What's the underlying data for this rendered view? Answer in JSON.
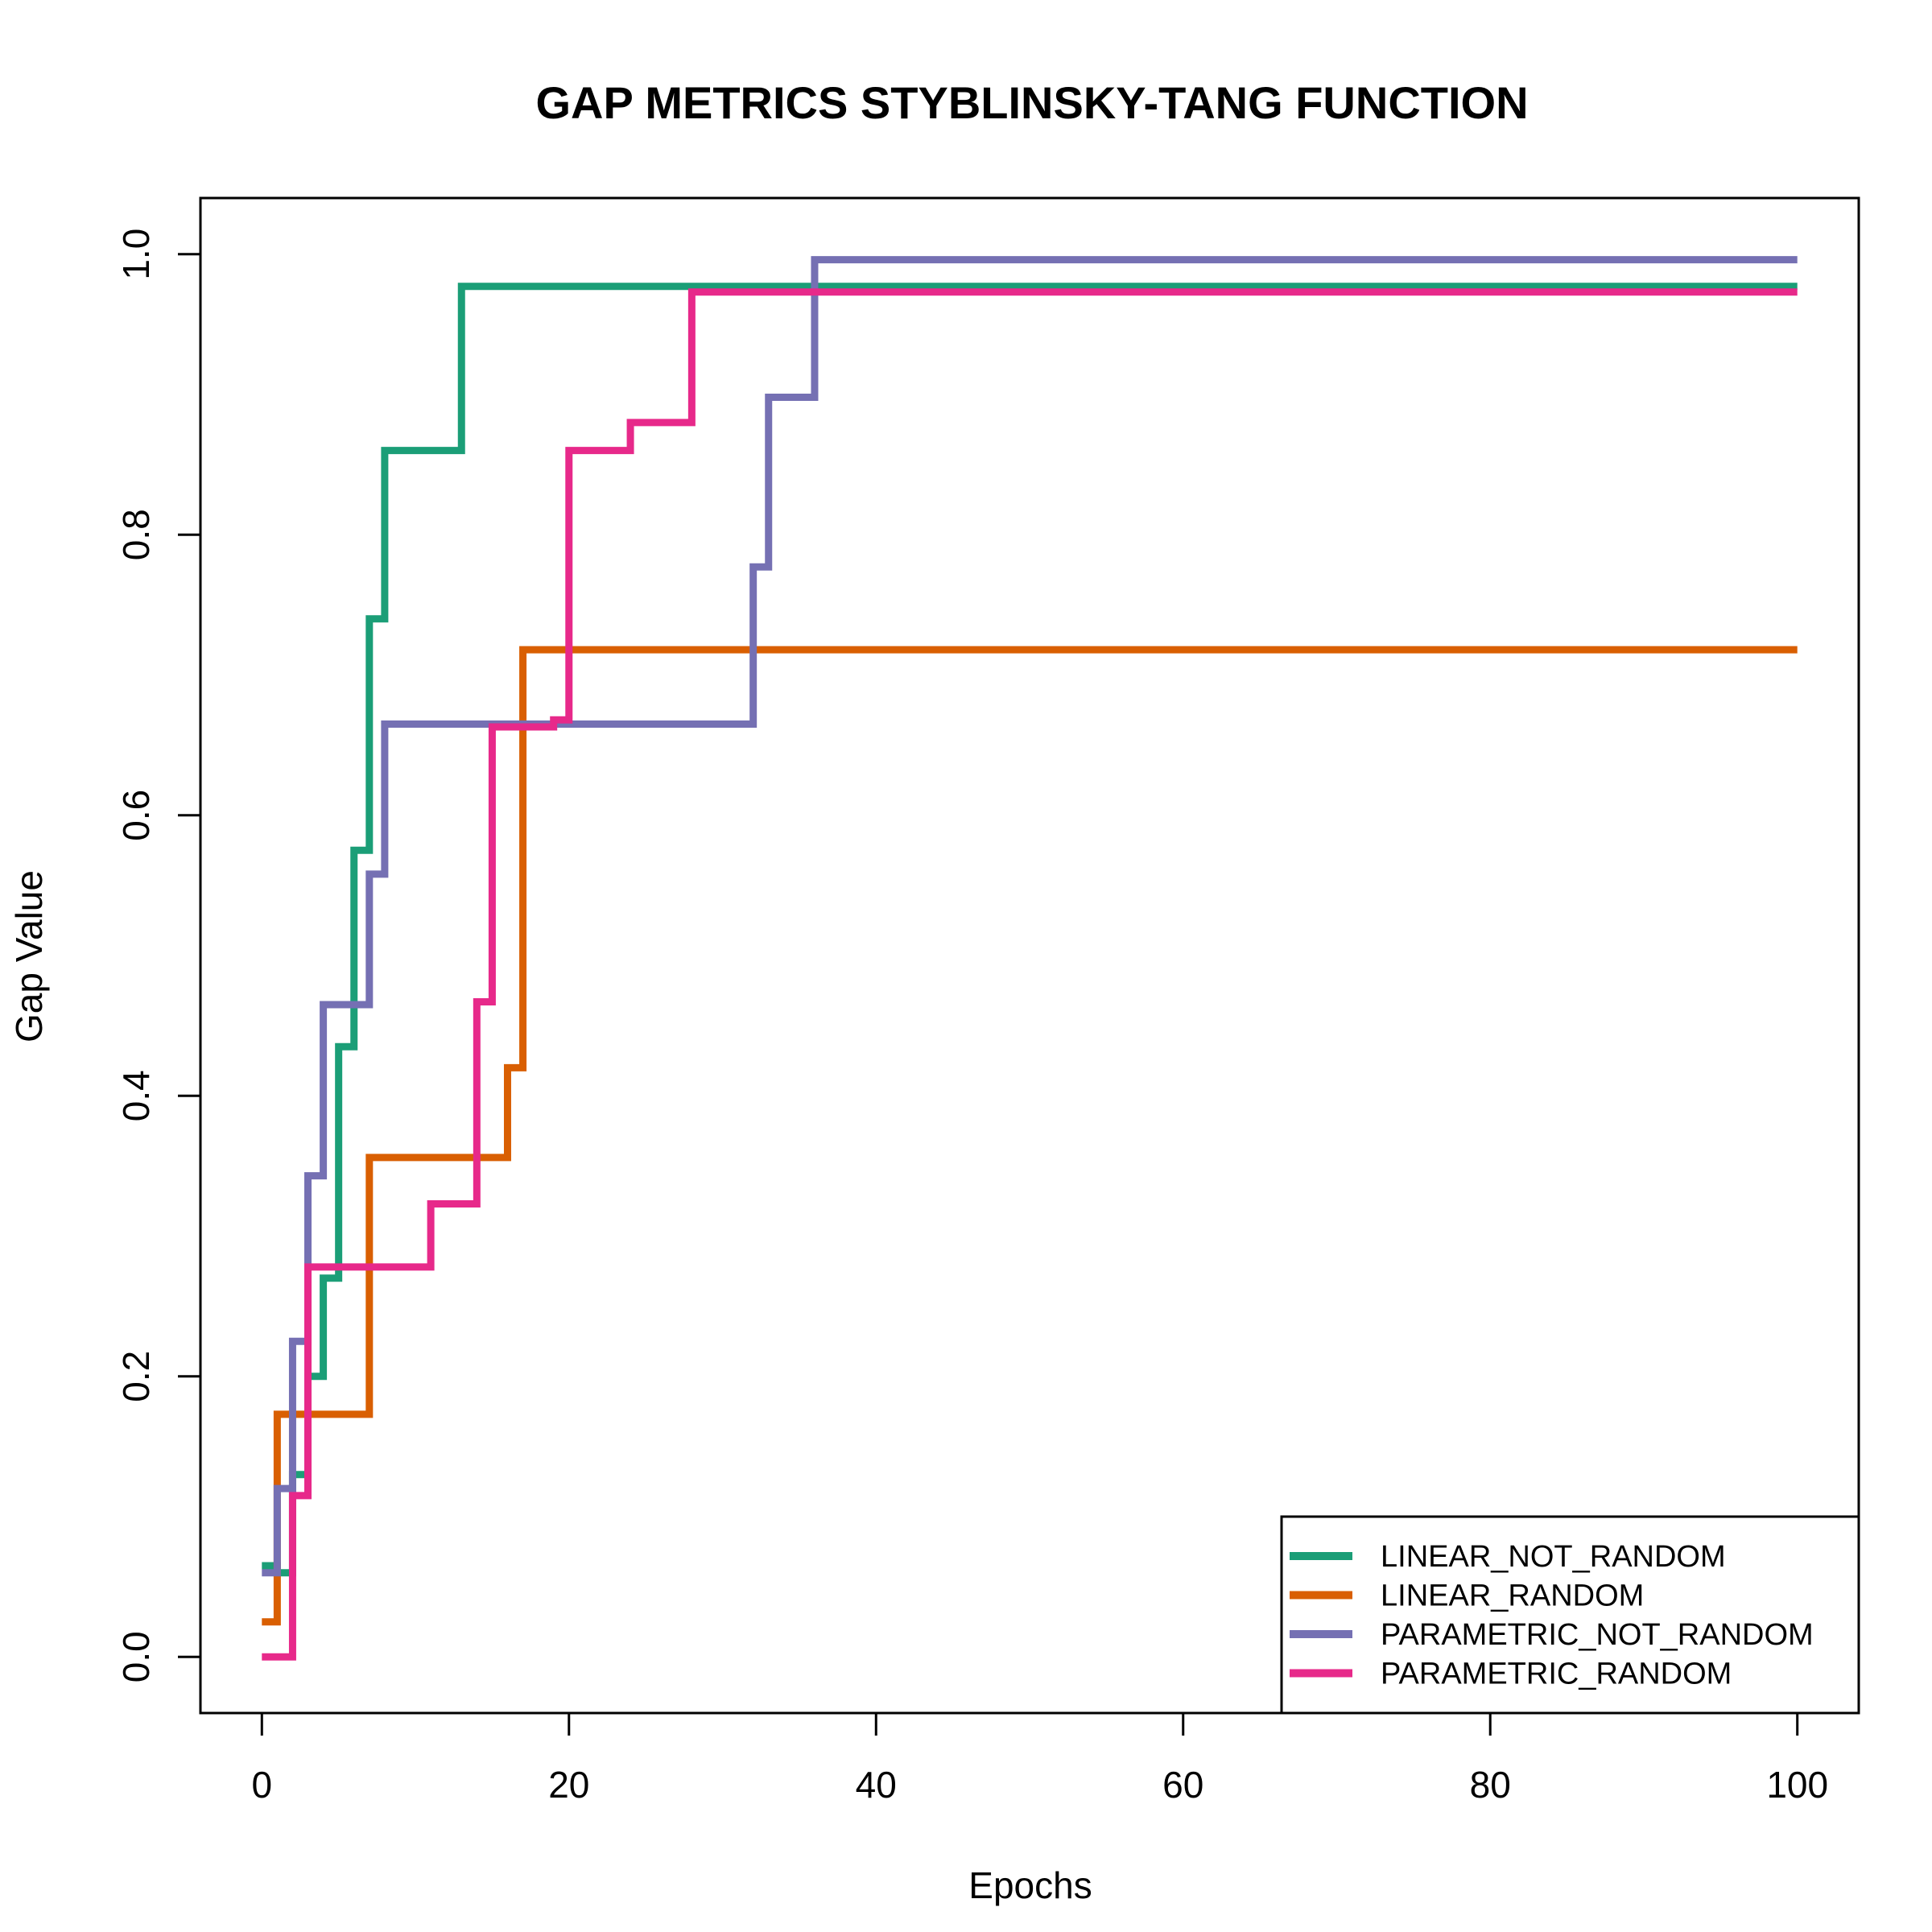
{
  "chart_data": {
    "type": "line",
    "step": true,
    "title": "GAP METRICS STYBLINSKY-TANG FUNCTION",
    "xlabel": "Epochs",
    "ylabel": "Gap Value",
    "xlim": [
      -4,
      104
    ],
    "ylim": [
      -0.04,
      1.04
    ],
    "xticks": [
      0,
      20,
      40,
      60,
      80,
      100
    ],
    "yticks": [
      0.0,
      0.2,
      0.4,
      0.6,
      0.8,
      1.0
    ],
    "xtick_labels": [
      "0",
      "20",
      "40",
      "60",
      "80",
      "100"
    ],
    "ytick_labels": [
      "0.0",
      "0.2",
      "0.4",
      "0.6",
      "0.8",
      "1.0"
    ],
    "grid": false,
    "legend_position": "bottom-right",
    "series": [
      {
        "name": "LINEAR_NOT_RANDOM",
        "color": "#1b9e77",
        "x": [
          0,
          1,
          2,
          3,
          4,
          5,
          6,
          7,
          8,
          13,
          100
        ],
        "y": [
          0.065,
          0.06,
          0.13,
          0.2,
          0.27,
          0.435,
          0.575,
          0.74,
          0.86,
          0.977,
          0.977
        ]
      },
      {
        "name": "LINEAR_RANDOM",
        "color": "#d95f02",
        "x": [
          0,
          1,
          7,
          16,
          17,
          100
        ],
        "y": [
          0.025,
          0.173,
          0.356,
          0.42,
          0.718,
          0.718
        ]
      },
      {
        "name": "PARAMETRIC_NOT_RANDOM",
        "color": "#7570b3",
        "x": [
          0,
          1,
          2,
          3,
          4,
          7,
          8,
          32,
          33,
          36,
          100
        ],
        "y": [
          0.06,
          0.12,
          0.225,
          0.343,
          0.465,
          0.558,
          0.665,
          0.777,
          0.898,
          0.996,
          0.996
        ]
      },
      {
        "name": "PARAMETRIC_RANDOM",
        "color": "#e7298a",
        "x": [
          0,
          2,
          3,
          11,
          14,
          15,
          19,
          20,
          24,
          28,
          100
        ],
        "y": [
          0.0,
          0.115,
          0.278,
          0.323,
          0.467,
          0.663,
          0.668,
          0.86,
          0.88,
          0.973,
          0.973
        ]
      }
    ]
  }
}
